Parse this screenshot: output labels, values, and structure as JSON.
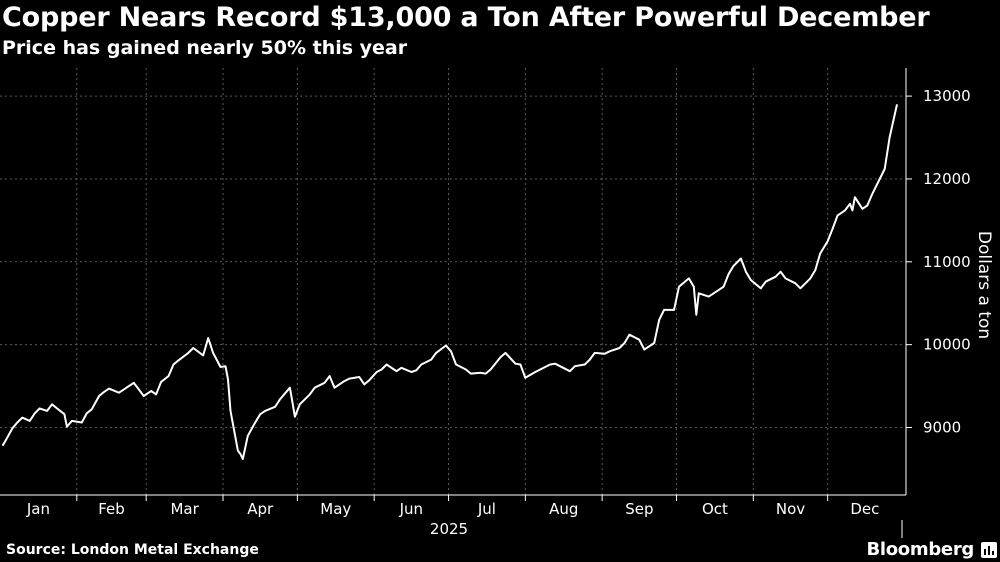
{
  "header": {
    "title": "Copper Nears Record $13,000 a Ton After Powerful December",
    "subtitle": "Price has gained nearly 50% this year"
  },
  "footer": {
    "source": "Source: London Metal Exchange",
    "brand": "Bloomberg"
  },
  "colors": {
    "background": "#000000",
    "line": "#ffffff",
    "grid": "#5a5a5a"
  },
  "chart_data": {
    "type": "line",
    "title": "Copper Nears Record $13,000 a Ton After Powerful December",
    "subtitle": "Price has gained nearly 50% this year",
    "xlabel": "2025",
    "ylabel": "Dollars a ton",
    "x_ticks": [
      "Jan",
      "Feb",
      "Mar",
      "Apr",
      "May",
      "Jun",
      "Jul",
      "Aug",
      "Sep",
      "Oct",
      "Nov",
      "Dec"
    ],
    "y_ticks": [
      9000,
      10000,
      11000,
      12000,
      13000
    ],
    "ylim": [
      8300,
      13200
    ],
    "xlim": [
      "2025-01-01",
      "2025-12-31"
    ],
    "grid": true,
    "y_axis_side": "right",
    "legend": "none",
    "series": [
      {
        "color": "#ffffff",
        "points": [
          [
            "2025-01-02",
            8780
          ],
          [
            "2025-01-03",
            8830
          ],
          [
            "2025-01-06",
            8990
          ],
          [
            "2025-01-08",
            9060
          ],
          [
            "2025-01-10",
            9120
          ],
          [
            "2025-01-13",
            9080
          ],
          [
            "2025-01-15",
            9170
          ],
          [
            "2025-01-17",
            9230
          ],
          [
            "2025-01-20",
            9200
          ],
          [
            "2025-01-22",
            9280
          ],
          [
            "2025-01-24",
            9230
          ],
          [
            "2025-01-27",
            9160
          ],
          [
            "2025-01-28",
            9010
          ],
          [
            "2025-01-30",
            9080
          ],
          [
            "2025-02-03",
            9060
          ],
          [
            "2025-02-05",
            9170
          ],
          [
            "2025-02-07",
            9220
          ],
          [
            "2025-02-10",
            9380
          ],
          [
            "2025-02-12",
            9430
          ],
          [
            "2025-02-14",
            9470
          ],
          [
            "2025-02-18",
            9420
          ],
          [
            "2025-02-20",
            9460
          ],
          [
            "2025-02-24",
            9540
          ],
          [
            "2025-02-26",
            9460
          ],
          [
            "2025-02-28",
            9380
          ],
          [
            "2025-03-03",
            9440
          ],
          [
            "2025-03-05",
            9400
          ],
          [
            "2025-03-07",
            9550
          ],
          [
            "2025-03-10",
            9620
          ],
          [
            "2025-03-12",
            9760
          ],
          [
            "2025-03-14",
            9810
          ],
          [
            "2025-03-18",
            9900
          ],
          [
            "2025-03-20",
            9960
          ],
          [
            "2025-03-24",
            9870
          ],
          [
            "2025-03-26",
            10080
          ],
          [
            "2025-03-28",
            9900
          ],
          [
            "2025-03-31",
            9730
          ],
          [
            "2025-04-02",
            9740
          ],
          [
            "2025-04-03",
            9580
          ],
          [
            "2025-04-04",
            9200
          ],
          [
            "2025-04-07",
            8720
          ],
          [
            "2025-04-08",
            8680
          ],
          [
            "2025-04-09",
            8620
          ],
          [
            "2025-04-11",
            8900
          ],
          [
            "2025-04-14",
            9060
          ],
          [
            "2025-04-16",
            9160
          ],
          [
            "2025-04-18",
            9200
          ],
          [
            "2025-04-22",
            9250
          ],
          [
            "2025-04-24",
            9340
          ],
          [
            "2025-04-28",
            9480
          ],
          [
            "2025-04-30",
            9130
          ],
          [
            "2025-05-02",
            9280
          ],
          [
            "2025-05-06",
            9400
          ],
          [
            "2025-05-08",
            9480
          ],
          [
            "2025-05-12",
            9540
          ],
          [
            "2025-05-14",
            9620
          ],
          [
            "2025-05-16",
            9480
          ],
          [
            "2025-05-20",
            9560
          ],
          [
            "2025-05-22",
            9590
          ],
          [
            "2025-05-26",
            9610
          ],
          [
            "2025-05-28",
            9520
          ],
          [
            "2025-05-30",
            9570
          ],
          [
            "2025-06-02",
            9670
          ],
          [
            "2025-06-04",
            9700
          ],
          [
            "2025-06-06",
            9760
          ],
          [
            "2025-06-10",
            9680
          ],
          [
            "2025-06-12",
            9720
          ],
          [
            "2025-06-16",
            9670
          ],
          [
            "2025-06-18",
            9690
          ],
          [
            "2025-06-20",
            9760
          ],
          [
            "2025-06-24",
            9820
          ],
          [
            "2025-06-26",
            9900
          ],
          [
            "2025-06-30",
            9990
          ],
          [
            "2025-07-02",
            9920
          ],
          [
            "2025-07-04",
            9760
          ],
          [
            "2025-07-08",
            9700
          ],
          [
            "2025-07-10",
            9650
          ],
          [
            "2025-07-14",
            9660
          ],
          [
            "2025-07-16",
            9650
          ],
          [
            "2025-07-18",
            9700
          ],
          [
            "2025-07-22",
            9850
          ],
          [
            "2025-07-24",
            9900
          ],
          [
            "2025-07-28",
            9770
          ],
          [
            "2025-07-30",
            9760
          ],
          [
            "2025-08-01",
            9600
          ],
          [
            "2025-08-05",
            9670
          ],
          [
            "2025-08-07",
            9700
          ],
          [
            "2025-08-11",
            9760
          ],
          [
            "2025-08-13",
            9770
          ],
          [
            "2025-08-15",
            9740
          ],
          [
            "2025-08-19",
            9680
          ],
          [
            "2025-08-21",
            9740
          ],
          [
            "2025-08-25",
            9760
          ],
          [
            "2025-08-27",
            9820
          ],
          [
            "2025-08-29",
            9900
          ],
          [
            "2025-09-02",
            9890
          ],
          [
            "2025-09-04",
            9920
          ],
          [
            "2025-09-08",
            9960
          ],
          [
            "2025-09-10",
            10020
          ],
          [
            "2025-09-12",
            10120
          ],
          [
            "2025-09-16",
            10060
          ],
          [
            "2025-09-18",
            9940
          ],
          [
            "2025-09-22",
            10020
          ],
          [
            "2025-09-24",
            10300
          ],
          [
            "2025-09-26",
            10420
          ],
          [
            "2025-09-30",
            10420
          ],
          [
            "2025-10-02",
            10700
          ],
          [
            "2025-10-06",
            10800
          ],
          [
            "2025-10-08",
            10700
          ],
          [
            "2025-10-09",
            10360
          ],
          [
            "2025-10-10",
            10620
          ],
          [
            "2025-10-14",
            10580
          ],
          [
            "2025-10-16",
            10620
          ],
          [
            "2025-10-20",
            10700
          ],
          [
            "2025-10-22",
            10850
          ],
          [
            "2025-10-24",
            10950
          ],
          [
            "2025-10-27",
            11040
          ],
          [
            "2025-10-29",
            10880
          ],
          [
            "2025-10-31",
            10780
          ],
          [
            "2025-11-04",
            10680
          ],
          [
            "2025-11-06",
            10760
          ],
          [
            "2025-11-10",
            10820
          ],
          [
            "2025-11-12",
            10880
          ],
          [
            "2025-11-14",
            10800
          ],
          [
            "2025-11-18",
            10740
          ],
          [
            "2025-11-20",
            10680
          ],
          [
            "2025-11-24",
            10800
          ],
          [
            "2025-11-26",
            10900
          ],
          [
            "2025-11-28",
            11100
          ],
          [
            "2025-12-01",
            11250
          ],
          [
            "2025-12-03",
            11400
          ],
          [
            "2025-12-05",
            11560
          ],
          [
            "2025-12-08",
            11620
          ],
          [
            "2025-12-10",
            11700
          ],
          [
            "2025-12-11",
            11620
          ],
          [
            "2025-12-12",
            11780
          ],
          [
            "2025-12-15",
            11640
          ],
          [
            "2025-12-17",
            11680
          ],
          [
            "2025-12-19",
            11820
          ],
          [
            "2025-12-22",
            12000
          ],
          [
            "2025-12-24",
            12120
          ],
          [
            "2025-12-26",
            12500
          ],
          [
            "2025-12-29",
            12900
          ]
        ]
      }
    ]
  }
}
